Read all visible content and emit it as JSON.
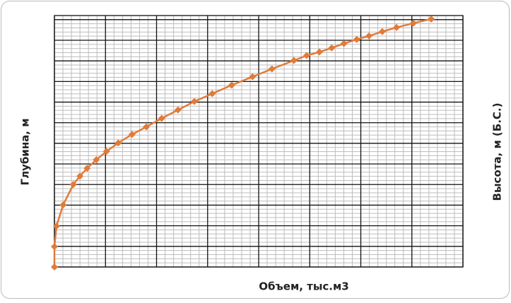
{
  "chart_data": {
    "type": "line",
    "x_label": "Объем,  тыс.м3",
    "y_label": "Глубина, м",
    "y2_label": "Высота, м (Б.С.)",
    "series": [
      {
        "color": "#e07b39",
        "x": [
          0,
          0,
          0.04,
          0.17,
          0.37,
          0.5,
          0.64,
          0.82,
          1.02,
          1.25,
          1.52,
          1.8,
          2.1,
          2.42,
          2.74,
          3.09,
          3.47,
          3.88,
          4.26,
          4.69,
          4.94,
          5.19,
          5.43,
          5.67,
          5.92,
          6.16,
          6.42,
          6.7,
          7.03,
          7.38
        ],
        "values": [
          0,
          0.99,
          1.98,
          3.01,
          4.0,
          4.41,
          4.79,
          5.2,
          5.61,
          6.02,
          6.43,
          6.8,
          7.21,
          7.62,
          8.03,
          8.41,
          8.82,
          9.23,
          9.61,
          10.02,
          10.26,
          10.43,
          10.63,
          10.84,
          11.04,
          11.21,
          11.42,
          11.62,
          11.83,
          12.03
        ]
      }
    ],
    "xlim": [
      0,
      8
    ],
    "ylim": [
      0,
      12.2
    ],
    "xticks": [
      0,
      1,
      2,
      3,
      4,
      5,
      6,
      7,
      8
    ],
    "yticks": [
      0,
      1,
      2,
      3,
      4,
      5,
      6,
      7,
      8,
      9,
      10,
      11,
      12
    ],
    "grid": true
  }
}
